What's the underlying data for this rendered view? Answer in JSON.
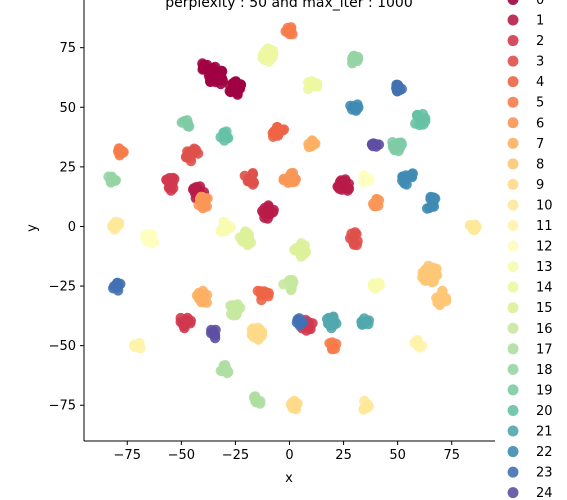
{
  "chart_data": {
    "type": "scatter",
    "title": "perplexity : 50 and max_iter : 1000",
    "xlabel": "x",
    "ylabel": "y",
    "xlim": [
      -95,
      95
    ],
    "ylim": [
      -90,
      95
    ],
    "xticks": [
      -75,
      -50,
      -25,
      0,
      25,
      50,
      75
    ],
    "yticks": [
      -75,
      -50,
      -25,
      0,
      25,
      50,
      75
    ],
    "xtick_labels": [
      "−75",
      "−50",
      "−25",
      "0",
      "25",
      "50",
      "75"
    ],
    "ytick_labels": [
      "−75",
      "−50",
      "−25",
      "0",
      "25",
      "50",
      "75"
    ],
    "grid": false,
    "legend_placement": "outside-right",
    "palette": "Spectral",
    "series": [
      {
        "name": "0",
        "color": "#9e0142",
        "clusters": [
          {
            "x": -34,
            "y": 63,
            "r": 4,
            "n": 30
          },
          {
            "x": -25,
            "y": 58,
            "r": 3,
            "n": 18
          },
          {
            "x": -39,
            "y": 67,
            "r": 2,
            "n": 8
          }
        ]
      },
      {
        "name": "1",
        "color": "#b81c48",
        "clusters": [
          {
            "x": -42,
            "y": 14,
            "r": 3,
            "n": 16
          },
          {
            "x": 25,
            "y": 17,
            "r": 3,
            "n": 14
          },
          {
            "x": -10,
            "y": 6,
            "r": 3,
            "n": 12
          }
        ]
      },
      {
        "name": "2",
        "color": "#d0384e",
        "clusters": [
          {
            "x": -55,
            "y": 18,
            "r": 3,
            "n": 16
          },
          {
            "x": -48,
            "y": -40,
            "r": 3,
            "n": 12
          },
          {
            "x": 8,
            "y": -42,
            "r": 3,
            "n": 10
          }
        ]
      },
      {
        "name": "3",
        "color": "#e0504a",
        "clusters": [
          {
            "x": -45,
            "y": 30,
            "r": 3,
            "n": 14
          },
          {
            "x": 30,
            "y": -5,
            "r": 3,
            "n": 10
          },
          {
            "x": -18,
            "y": 20,
            "r": 3,
            "n": 10
          }
        ]
      },
      {
        "name": "4",
        "color": "#ed6445",
        "clusters": [
          {
            "x": -5,
            "y": 39,
            "r": 3,
            "n": 14
          },
          {
            "x": -12,
            "y": -28,
            "r": 3,
            "n": 12
          }
        ]
      },
      {
        "name": "5",
        "color": "#f67c4a",
        "clusters": [
          {
            "x": -78,
            "y": 31,
            "r": 2,
            "n": 10
          },
          {
            "x": 0,
            "y": 82,
            "r": 2,
            "n": 10
          },
          {
            "x": 20,
            "y": -50,
            "r": 2,
            "n": 8
          }
        ]
      },
      {
        "name": "6",
        "color": "#fa9656",
        "clusters": [
          {
            "x": -40,
            "y": 10,
            "r": 3,
            "n": 14
          },
          {
            "x": 0,
            "y": 20,
            "r": 3,
            "n": 12
          },
          {
            "x": 40,
            "y": 10,
            "r": 2,
            "n": 8
          }
        ]
      },
      {
        "name": "7",
        "color": "#fdb063",
        "clusters": [
          {
            "x": -40,
            "y": -30,
            "r": 3,
            "n": 14
          },
          {
            "x": 10,
            "y": 35,
            "r": 2,
            "n": 10
          }
        ]
      },
      {
        "name": "8",
        "color": "#fdc776",
        "clusters": [
          {
            "x": 65,
            "y": -20,
            "r": 4,
            "n": 24
          },
          {
            "x": 70,
            "y": -30,
            "r": 3,
            "n": 12
          }
        ]
      },
      {
        "name": "9",
        "color": "#fed988",
        "clusters": [
          {
            "x": -15,
            "y": -45,
            "r": 3,
            "n": 14
          },
          {
            "x": 2,
            "y": -75,
            "r": 2,
            "n": 8
          }
        ]
      },
      {
        "name": "10",
        "color": "#fee89a",
        "clusters": [
          {
            "x": -80,
            "y": 0,
            "r": 2,
            "n": 10
          },
          {
            "x": 85,
            "y": 0,
            "r": 2,
            "n": 10
          },
          {
            "x": 35,
            "y": -75,
            "r": 2,
            "n": 6
          }
        ]
      },
      {
        "name": "11",
        "color": "#fff3ac",
        "clusters": [
          {
            "x": 60,
            "y": -50,
            "r": 3,
            "n": 10
          },
          {
            "x": -70,
            "y": -50,
            "r": 2,
            "n": 6
          }
        ]
      },
      {
        "name": "12",
        "color": "#fefebe",
        "clusters": [
          {
            "x": -65,
            "y": -5,
            "r": 3,
            "n": 12
          },
          {
            "x": 35,
            "y": 20,
            "r": 2,
            "n": 8
          }
        ]
      },
      {
        "name": "13",
        "color": "#f7fbb0",
        "clusters": [
          {
            "x": -30,
            "y": 0,
            "r": 3,
            "n": 12
          },
          {
            "x": 40,
            "y": -25,
            "r": 2,
            "n": 8
          }
        ]
      },
      {
        "name": "14",
        "color": "#ecf7a1",
        "clusters": [
          {
            "x": -10,
            "y": 72,
            "r": 3,
            "n": 16
          },
          {
            "x": 10,
            "y": 60,
            "r": 3,
            "n": 10
          }
        ]
      },
      {
        "name": "15",
        "color": "#dcf19a",
        "clusters": [
          {
            "x": -20,
            "y": -5,
            "r": 3,
            "n": 14
          },
          {
            "x": 5,
            "y": -10,
            "r": 3,
            "n": 12
          }
        ]
      },
      {
        "name": "16",
        "color": "#c7e89e",
        "clusters": [
          {
            "x": -25,
            "y": -35,
            "r": 3,
            "n": 14
          },
          {
            "x": 0,
            "y": -25,
            "r": 3,
            "n": 10
          }
        ]
      },
      {
        "name": "17",
        "color": "#afdea3",
        "clusters": [
          {
            "x": -30,
            "y": -60,
            "r": 2,
            "n": 10
          },
          {
            "x": -15,
            "y": -73,
            "r": 2,
            "n": 8
          }
        ]
      },
      {
        "name": "18",
        "color": "#97d4a4",
        "clusters": [
          {
            "x": 30,
            "y": 70,
            "r": 2,
            "n": 10
          },
          {
            "x": -82,
            "y": 20,
            "r": 2,
            "n": 8
          }
        ]
      },
      {
        "name": "19",
        "color": "#7ecba5",
        "clusters": [
          {
            "x": 50,
            "y": 34,
            "r": 3,
            "n": 14
          },
          {
            "x": -48,
            "y": 43,
            "r": 2,
            "n": 6
          }
        ]
      },
      {
        "name": "20",
        "color": "#66c2a5",
        "clusters": [
          {
            "x": 60,
            "y": 45,
            "r": 3,
            "n": 14
          },
          {
            "x": -30,
            "y": 38,
            "r": 2,
            "n": 8
          }
        ]
      },
      {
        "name": "21",
        "color": "#51a7ad",
        "clusters": [
          {
            "x": 20,
            "y": -40,
            "r": 3,
            "n": 14
          },
          {
            "x": 35,
            "y": -40,
            "r": 2,
            "n": 10
          }
        ]
      },
      {
        "name": "22",
        "color": "#3f8bb4",
        "clusters": [
          {
            "x": 55,
            "y": 20,
            "r": 3,
            "n": 12
          },
          {
            "x": 65,
            "y": 10,
            "r": 3,
            "n": 10
          },
          {
            "x": 30,
            "y": 50,
            "r": 2,
            "n": 8
          }
        ]
      },
      {
        "name": "23",
        "color": "#4371b3",
        "clusters": [
          {
            "x": -80,
            "y": -25,
            "r": 2,
            "n": 10
          },
          {
            "x": 50,
            "y": 58,
            "r": 2,
            "n": 10
          },
          {
            "x": 5,
            "y": -40,
            "r": 2,
            "n": 8
          }
        ]
      },
      {
        "name": "24",
        "color": "#5e4fa2",
        "clusters": [
          {
            "x": -35,
            "y": -45,
            "r": 2,
            "n": 8
          },
          {
            "x": 40,
            "y": 35,
            "r": 2,
            "n": 8
          }
        ]
      }
    ]
  }
}
